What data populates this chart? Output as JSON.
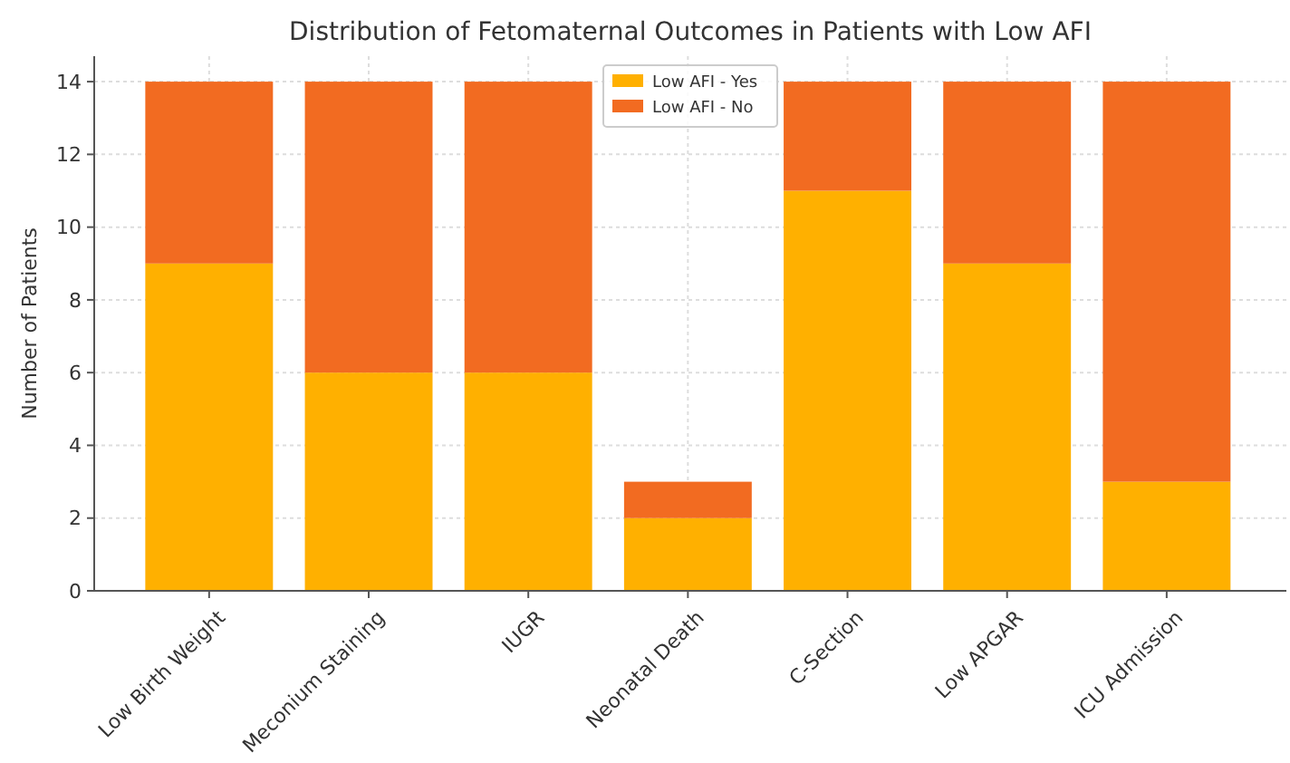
{
  "chart_data": {
    "type": "bar",
    "title": "Distribution of Fetomaternal Outcomes in Patients with Low AFI",
    "ylabel": "Number of Patients",
    "categories": [
      "Low Birth Weight",
      "Meconium Staining",
      "IUGR",
      "Neonatal Death",
      "C-Section",
      "Low APGAR",
      "ICU Admission"
    ],
    "series": [
      {
        "name": "Low AFI - Yes",
        "color": "#ffb000",
        "values": [
          9,
          6,
          6,
          2,
          11,
          9,
          3
        ]
      },
      {
        "name": "Low AFI - No",
        "color": "#f26b21",
        "values": [
          5,
          8,
          8,
          1,
          3,
          5,
          11
        ]
      }
    ],
    "stacked": true,
    "ylim": [
      0,
      14.7
    ],
    "yticks": [
      0,
      2,
      4,
      6,
      8,
      10,
      12,
      14
    ],
    "grid": true,
    "legend": "top"
  }
}
